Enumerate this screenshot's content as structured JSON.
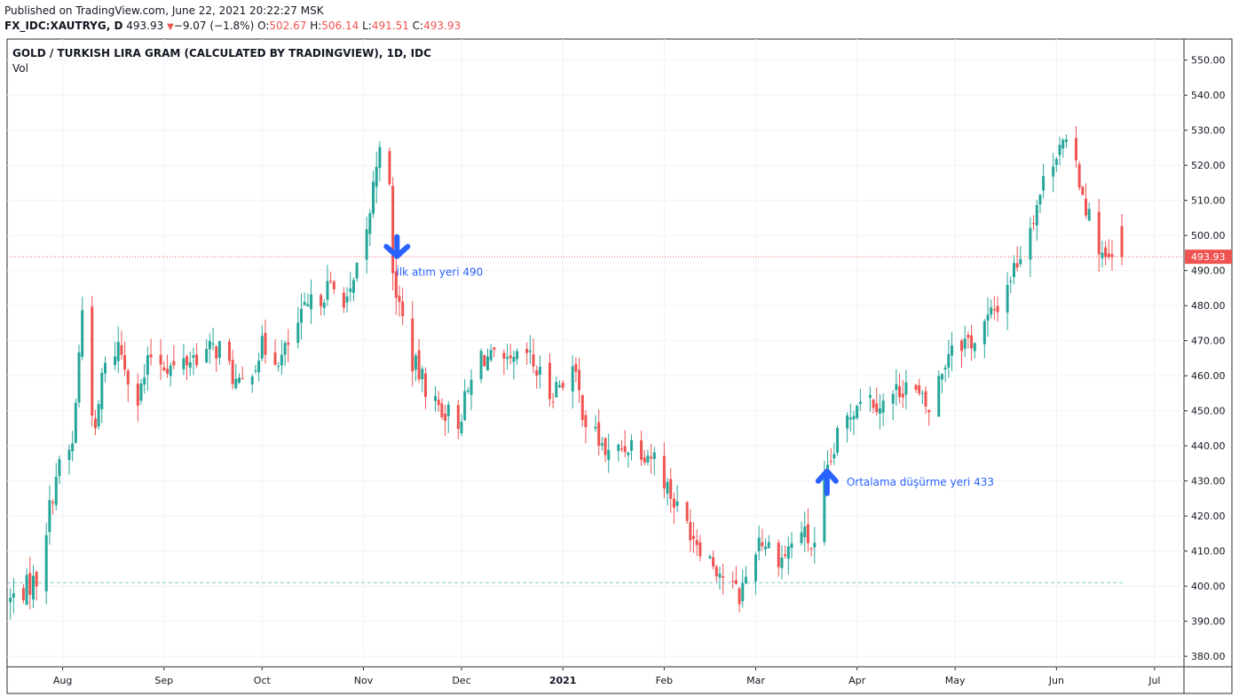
{
  "header": {
    "published": "Published on TradingView.com, June 22, 2021 20:22:27 MSK",
    "symbol_line": "FX_IDC:XAUTRYG, D",
    "last": "493.93",
    "change": "−9.07 (−1.8%)",
    "o_label": "O:",
    "o_val": "502.67",
    "h_label": "H:",
    "h_val": "506.14",
    "l_label": "L:",
    "l_val": "491.51",
    "c_label": "C:",
    "c_val": "493.93",
    "down_arrow": "▼"
  },
  "chart_data": {
    "type": "candlestick",
    "title": "GOLD / TURKISH LIRA GRAM (CALCULATED BY TRADINGVIEW), 1D, IDC",
    "subtitle": "Vol",
    "ylim": [
      377,
      556
    ],
    "y_ticks": [
      "550.00",
      "540.00",
      "530.00",
      "520.00",
      "510.00",
      "500.00",
      "490.00",
      "480.00",
      "470.00",
      "460.00",
      "450.00",
      "440.00",
      "430.00",
      "420.00",
      "410.00",
      "400.00",
      "390.00",
      "380.00"
    ],
    "x_ticks": [
      "Aug",
      "Sep",
      "Oct",
      "Nov",
      "Dec",
      "2021",
      "Feb",
      "Mar",
      "Apr",
      "May",
      "Jun",
      "Jul"
    ],
    "last_price_label": "493.93",
    "last_price": 493.93,
    "support_level": 401,
    "anchors": [
      [
        "2020-07-16",
        396
      ],
      [
        "2020-07-24",
        402
      ],
      [
        "2020-07-30",
        432
      ],
      [
        "2020-08-04",
        440
      ],
      [
        "2020-08-07",
        479
      ],
      [
        "2020-08-11",
        442
      ],
      [
        "2020-08-13",
        460
      ],
      [
        "2020-08-18",
        469
      ],
      [
        "2020-08-24",
        453
      ],
      [
        "2020-08-28",
        466
      ],
      [
        "2020-09-04",
        462
      ],
      [
        "2020-09-11",
        466
      ],
      [
        "2020-09-18",
        468
      ],
      [
        "2020-09-24",
        456
      ],
      [
        "2020-10-01",
        468
      ],
      [
        "2020-10-07",
        465
      ],
      [
        "2020-10-14",
        478
      ],
      [
        "2020-10-21",
        485
      ],
      [
        "2020-10-28",
        482
      ],
      [
        "2020-11-02",
        500
      ],
      [
        "2020-11-06",
        528
      ],
      [
        "2020-11-08",
        536
      ],
      [
        "2020-11-10",
        488
      ],
      [
        "2020-11-16",
        464
      ],
      [
        "2020-11-23",
        452
      ],
      [
        "2020-11-30",
        447
      ],
      [
        "2020-12-07",
        466
      ],
      [
        "2020-12-15",
        462
      ],
      [
        "2020-12-21",
        466
      ],
      [
        "2020-12-28",
        455
      ],
      [
        "2021-01-04",
        462
      ],
      [
        "2021-01-08",
        447
      ],
      [
        "2021-01-15",
        437
      ],
      [
        "2021-01-22",
        441
      ],
      [
        "2021-01-29",
        437
      ],
      [
        "2021-02-05",
        422
      ],
      [
        "2021-02-12",
        412
      ],
      [
        "2021-02-19",
        403
      ],
      [
        "2021-02-24",
        397
      ],
      [
        "2021-03-02",
        414
      ],
      [
        "2021-03-09",
        408
      ],
      [
        "2021-03-15",
        416
      ],
      [
        "2021-03-19",
        410
      ],
      [
        "2021-03-22",
        428
      ],
      [
        "2021-03-26",
        442
      ],
      [
        "2021-04-02",
        455
      ],
      [
        "2021-04-09",
        452
      ],
      [
        "2021-04-16",
        458
      ],
      [
        "2021-04-23",
        450
      ],
      [
        "2021-04-30",
        470
      ],
      [
        "2021-05-07",
        470
      ],
      [
        "2021-05-14",
        480
      ],
      [
        "2021-05-21",
        495
      ],
      [
        "2021-05-28",
        515
      ],
      [
        "2021-06-02",
        527
      ],
      [
        "2021-06-07",
        520
      ],
      [
        "2021-06-11",
        505
      ],
      [
        "2021-06-16",
        492
      ],
      [
        "2021-06-21",
        494
      ]
    ],
    "annotations": [
      {
        "text": "İlk atım yeri 490",
        "date": "2020-11-11",
        "price": 490,
        "arrow": "down"
      },
      {
        "text": "Ortalama düşürme yeri 433",
        "date": "2021-03-22",
        "price": 433,
        "arrow": "up"
      }
    ],
    "colors": {
      "up": "#26a69a",
      "down": "#ef5350",
      "annotation": "#2962ff",
      "grid": "#f0f3fa",
      "price_line": "#ef5350",
      "support_line": "#80cbc4"
    }
  }
}
